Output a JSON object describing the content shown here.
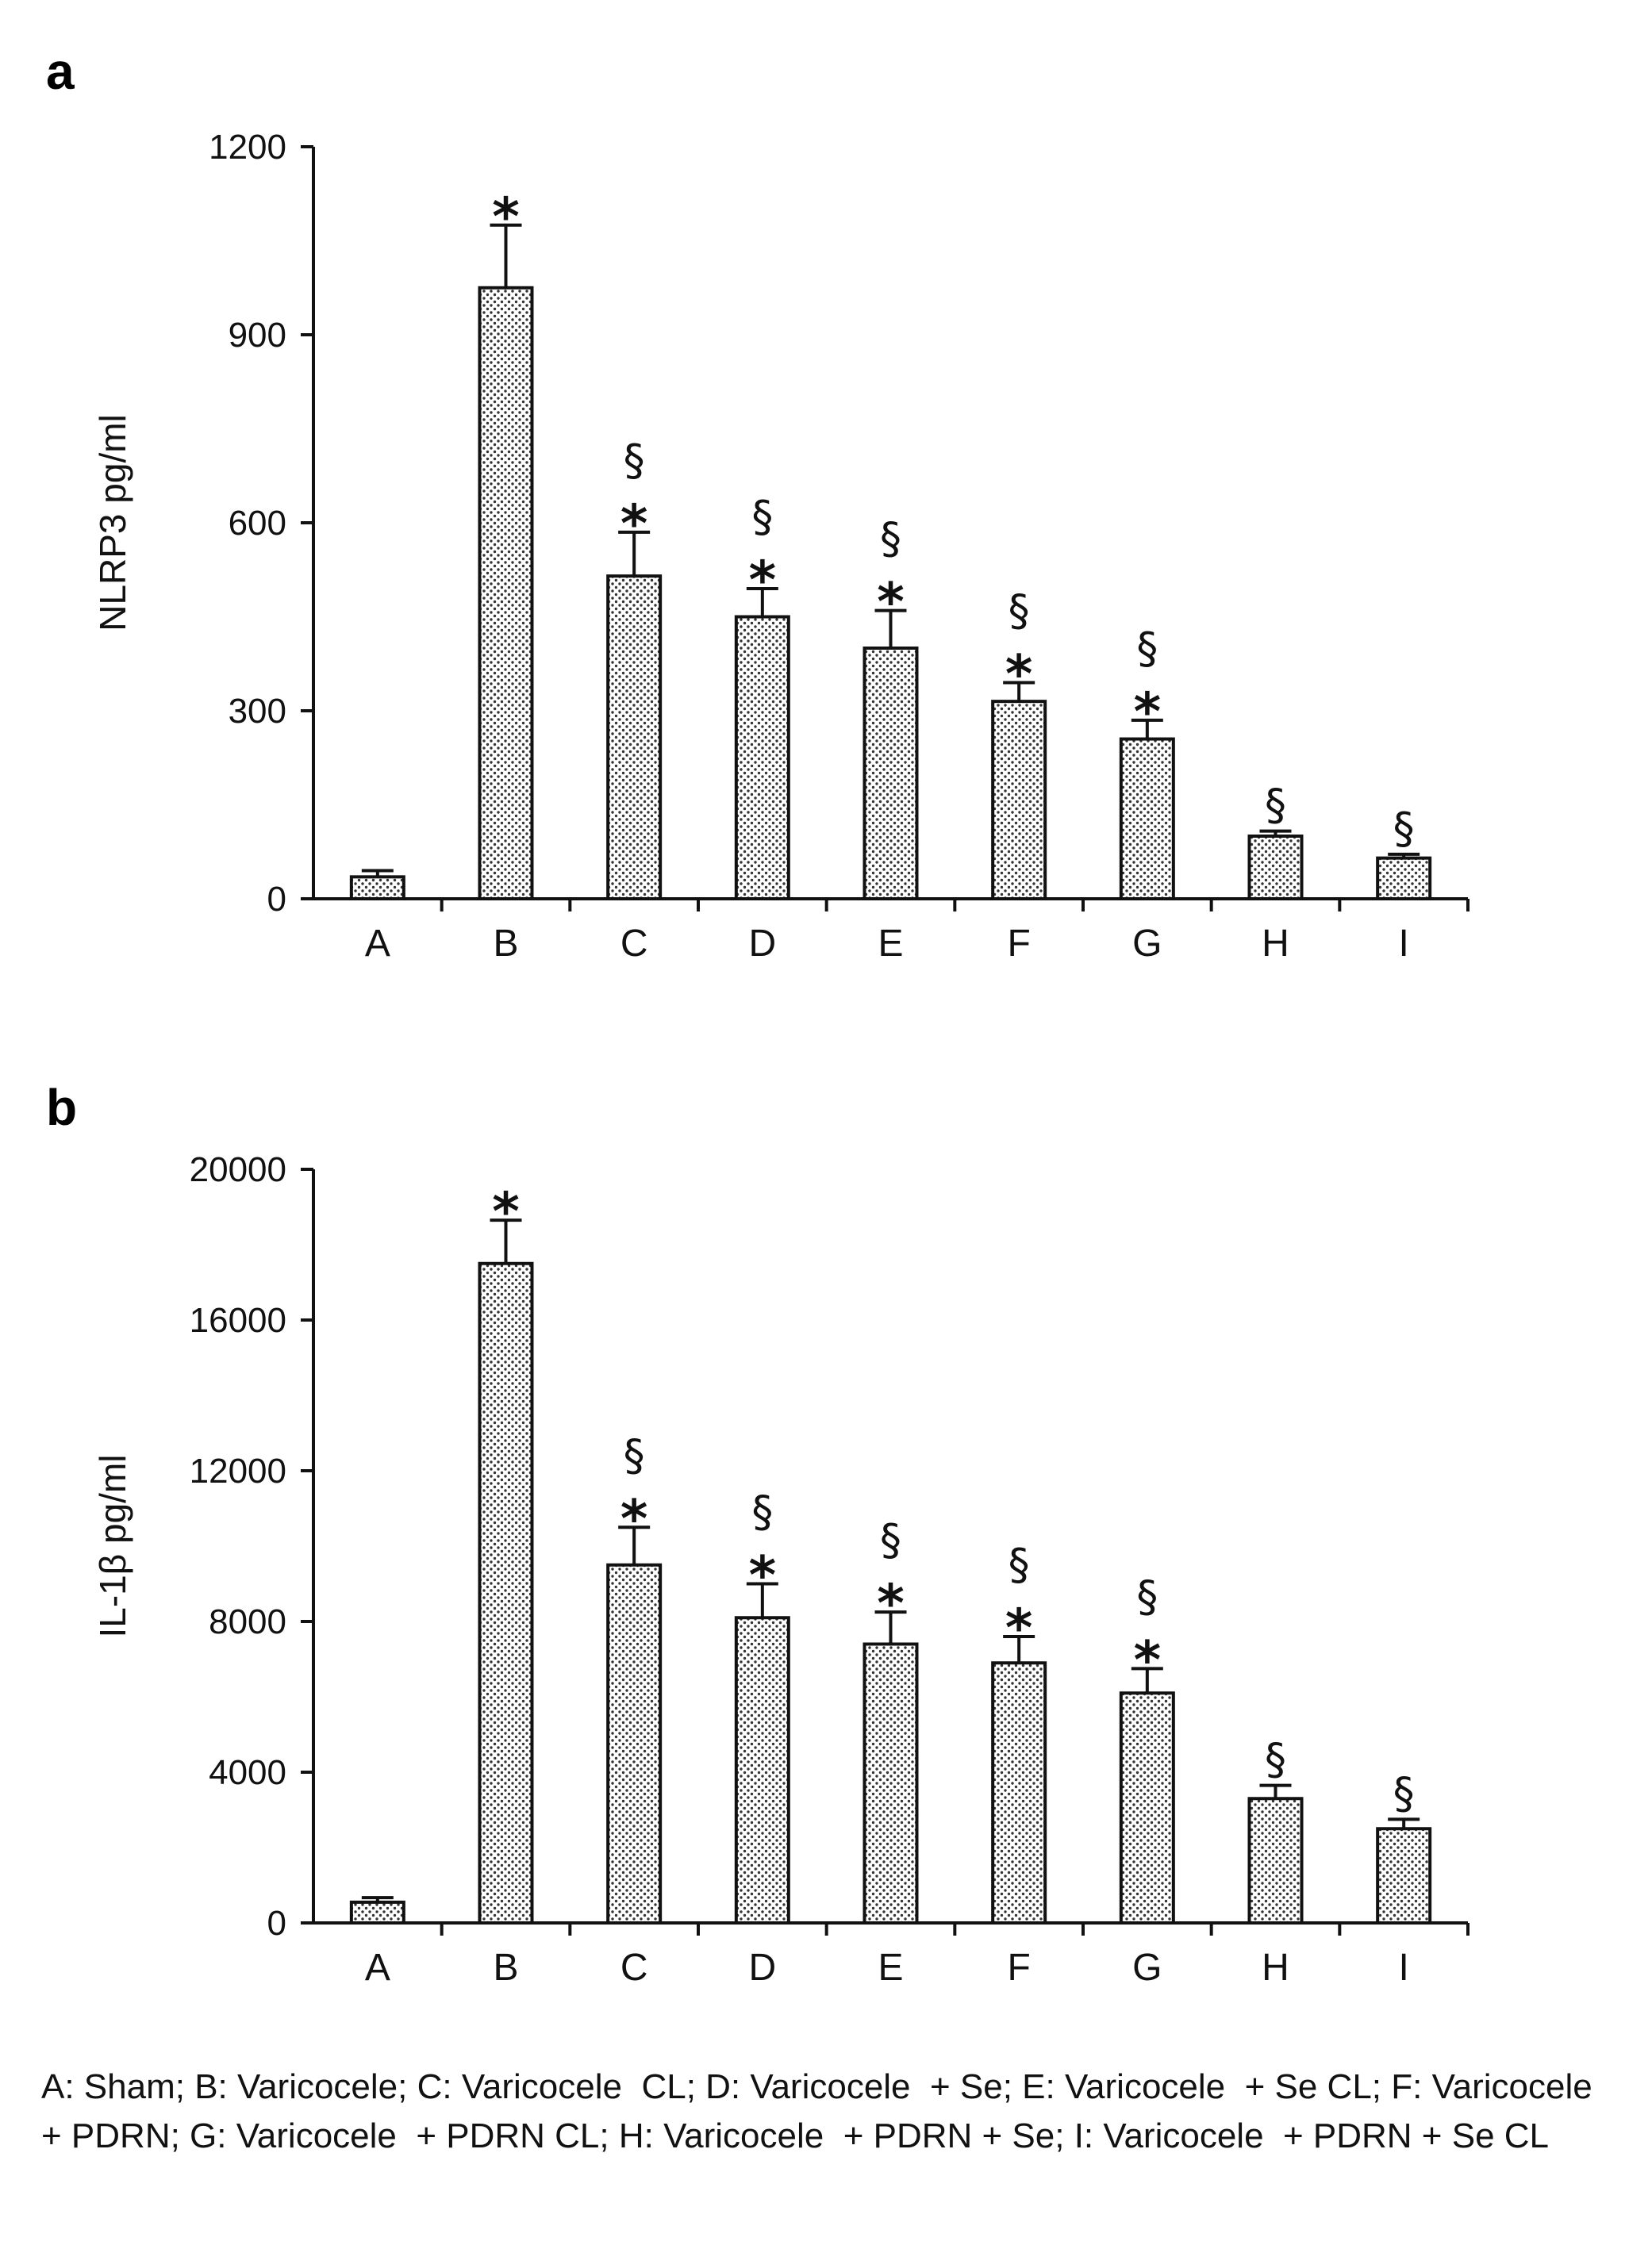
{
  "chart_data": [
    {
      "panel_label": "a",
      "type": "bar",
      "ylabel": "NLRP3 pg/ml",
      "ylim": [
        0,
        1200
      ],
      "yticks": [
        0,
        300,
        600,
        900,
        1200
      ],
      "categories": [
        "A",
        "B",
        "C",
        "D",
        "E",
        "F",
        "G",
        "H",
        "I"
      ],
      "values": [
        35,
        975,
        515,
        450,
        400,
        315,
        255,
        100,
        65
      ],
      "errors": [
        10,
        100,
        70,
        45,
        60,
        30,
        30,
        8,
        6
      ],
      "star": [
        false,
        true,
        true,
        true,
        true,
        true,
        true,
        false,
        false
      ],
      "section": [
        false,
        false,
        true,
        true,
        true,
        true,
        true,
        true,
        true
      ],
      "star_glyph": "*",
      "section_glyph": "§"
    },
    {
      "panel_label": "b",
      "type": "bar",
      "ylabel": "IL-1β pg/ml",
      "ylim": [
        0,
        20000
      ],
      "yticks": [
        0,
        4000,
        8000,
        12000,
        16000,
        20000
      ],
      "categories": [
        "A",
        "B",
        "C",
        "D",
        "E",
        "F",
        "G",
        "H",
        "I"
      ],
      "values": [
        550,
        17500,
        9500,
        8100,
        7400,
        6900,
        6100,
        3300,
        2500
      ],
      "errors": [
        120,
        1150,
        1000,
        900,
        850,
        700,
        650,
        350,
        250
      ],
      "star": [
        false,
        true,
        true,
        true,
        true,
        true,
        true,
        false,
        false
      ],
      "section": [
        false,
        false,
        true,
        true,
        true,
        true,
        true,
        true,
        true
      ],
      "star_glyph": "*",
      "section_glyph": "§"
    }
  ],
  "legend_text": "A: Sham; B: Varicocele; C: Varicocele  CL; D: Varicocele  + Se; E: Varicocele  + Se CL; F: Varicocele  + PDRN; G: Varicocele  + PDRN CL; H: Varicocele  + PDRN + Se; I: Varicocele  + PDRN + Se CL"
}
